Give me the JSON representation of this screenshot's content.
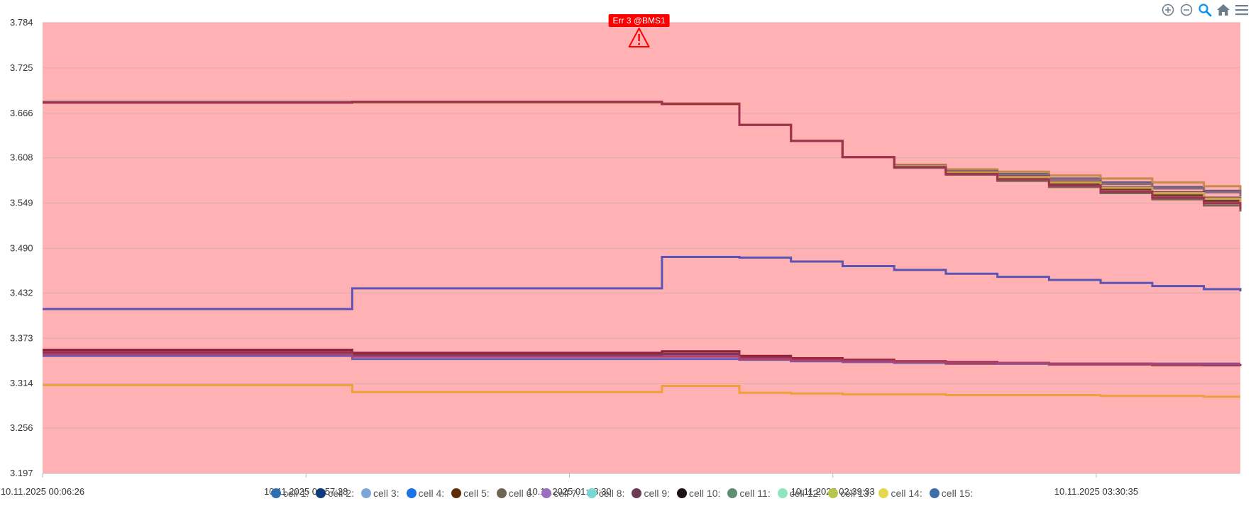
{
  "toolbar": {
    "icons": [
      "zoom-in-icon",
      "zoom-out-icon",
      "zoom-select-icon",
      "home-reset-icon",
      "menu-icon"
    ],
    "colors": {
      "grey": "#6e7d8c",
      "active": "#008ffb"
    }
  },
  "annotation": {
    "text": "Err 3 @BMS1",
    "icon": "warning-triangle-icon",
    "color": "#ff0000",
    "x": "10.11.2025 02:02:00"
  },
  "chart_data": {
    "type": "line",
    "style": "stepline",
    "background_color": "#ffb1b3",
    "grid": true,
    "legend_position": "bottom",
    "x_type": "datetime",
    "xlim": [
      "10.11.2025 00:06:26",
      "10.11.2025 03:58:30"
    ],
    "x_tick_labels": [
      "10.11.2025 00:06:26",
      "10.11.2025 00:57:28",
      "10.11.2025 01:48:30",
      "10.11.2025 02:39:33",
      "10.11.2025 03:30:35"
    ],
    "ylim": [
      3.197,
      3.784
    ],
    "y_tick_labels": [
      "3.784",
      "3.725",
      "3.666",
      "3.608",
      "3.549",
      "3.490",
      "3.432",
      "3.373",
      "3.314",
      "3.256",
      "3.197"
    ],
    "x_steps": [
      "10.11.2025 00:06:26",
      "10.11.2025 01:06:26",
      "10.11.2025 02:06:26",
      "10.11.2025 02:21:26",
      "10.11.2025 02:31:26",
      "10.11.2025 02:41:26",
      "10.11.2025 02:51:26",
      "10.11.2025 03:01:26",
      "10.11.2025 03:11:26",
      "10.11.2025 03:21:26",
      "10.11.2025 03:31:26",
      "10.11.2025 03:41:26",
      "10.11.2025 03:51:26",
      "10.11.2025 03:58:30"
    ],
    "series": [
      {
        "name": "cell 1:",
        "color": "#2e6fb0",
        "line_color": "#6d5a78",
        "values": [
          3.68,
          3.681,
          3.678,
          3.651,
          3.63,
          3.609,
          3.598,
          3.592,
          3.587,
          3.581,
          3.576,
          3.57,
          3.565,
          3.56
        ]
      },
      {
        "name": "cell 2:",
        "color": "#0d3b80",
        "line_color": "#c88a4a",
        "values": [
          3.681,
          3.68,
          3.679,
          3.651,
          3.63,
          3.609,
          3.599,
          3.593,
          3.59,
          3.585,
          3.581,
          3.576,
          3.571,
          3.566
        ]
      },
      {
        "name": "cell 3:",
        "color": "#7ea6d8",
        "line_color": "#8a6a80",
        "values": [
          3.681,
          3.681,
          3.678,
          3.651,
          3.63,
          3.609,
          3.598,
          3.591,
          3.586,
          3.58,
          3.574,
          3.568,
          3.563,
          3.558
        ]
      },
      {
        "name": "cell 4:",
        "color": "#1a73e8",
        "line_color": "#7a3b5a",
        "values": [
          3.68,
          3.681,
          3.678,
          3.651,
          3.63,
          3.609,
          3.597,
          3.59,
          3.584,
          3.577,
          3.57,
          3.563,
          3.556,
          3.549
        ]
      },
      {
        "name": "cell 5:",
        "color": "#5c2c06",
        "line_color": "#6b3b2c",
        "values": [
          3.68,
          3.681,
          3.678,
          3.651,
          3.63,
          3.609,
          3.596,
          3.588,
          3.581,
          3.574,
          3.567,
          3.559,
          3.552,
          3.545
        ]
      },
      {
        "name": "cell 6:",
        "color": "#6e6552",
        "line_color": "#7a6655",
        "values": [
          3.68,
          3.681,
          3.678,
          3.651,
          3.63,
          3.609,
          3.595,
          3.586,
          3.578,
          3.57,
          3.562,
          3.554,
          3.546,
          3.538
        ]
      },
      {
        "name": "cell 7:",
        "color": "#9b6fbf",
        "line_color": "#5b54b4",
        "values": [
          3.411,
          3.438,
          3.479,
          3.478,
          3.473,
          3.467,
          3.462,
          3.457,
          3.453,
          3.449,
          3.445,
          3.441,
          3.437,
          3.434
        ]
      },
      {
        "name": "cell 8:",
        "color": "#79d6d0",
        "line_color": "#8c1e3a",
        "values": [
          3.358,
          3.354,
          3.356,
          3.35,
          3.347,
          3.345,
          3.343,
          3.342,
          3.341,
          3.34,
          3.34,
          3.339,
          3.338,
          3.337
        ]
      },
      {
        "name": "cell 9:",
        "color": "#6b3a55",
        "line_color": "#a02c45",
        "values": [
          3.355,
          3.352,
          3.353,
          3.348,
          3.346,
          3.344,
          3.342,
          3.341,
          3.34,
          3.339,
          3.339,
          3.338,
          3.338,
          3.338
        ]
      },
      {
        "name": "cell 10:",
        "color": "#1c1414",
        "line_color": "#7c3a5e",
        "values": [
          3.353,
          3.351,
          3.352,
          3.346,
          3.344,
          3.343,
          3.341,
          3.34,
          3.34,
          3.339,
          3.339,
          3.339,
          3.338,
          3.338
        ]
      },
      {
        "name": "cell 11:",
        "color": "#5e8f72",
        "line_color": "#6a62ba",
        "values": [
          3.35,
          3.346,
          3.346,
          3.345,
          3.343,
          3.342,
          3.341,
          3.341,
          3.34,
          3.34,
          3.34,
          3.34,
          3.34,
          3.34
        ]
      },
      {
        "name": "cell 12:",
        "color": "#8fe6be",
        "line_color": "#b0406e",
        "values": [
          3.352,
          3.349,
          3.349,
          3.346,
          3.344,
          3.343,
          3.342,
          3.341,
          3.341,
          3.34,
          3.34,
          3.339,
          3.339,
          3.339
        ]
      },
      {
        "name": "cell 13:",
        "color": "#b5c64a",
        "line_color": "#f0a03a",
        "values": [
          3.312,
          3.303,
          3.311,
          3.302,
          3.301,
          3.3,
          3.3,
          3.299,
          3.299,
          3.299,
          3.298,
          3.298,
          3.297,
          3.297
        ]
      },
      {
        "name": "cell 14:",
        "color": "#e3d84e",
        "line_color": "#c9a548",
        "values": [
          3.68,
          3.681,
          3.678,
          3.651,
          3.63,
          3.609,
          3.597,
          3.589,
          3.583,
          3.576,
          3.569,
          3.562,
          3.555,
          3.547
        ]
      },
      {
        "name": "cell 15:",
        "color": "#3d6ea8",
        "line_color": "#a33050",
        "values": [
          3.68,
          3.681,
          3.678,
          3.651,
          3.63,
          3.609,
          3.596,
          3.587,
          3.58,
          3.572,
          3.564,
          3.556,
          3.549,
          3.541
        ]
      }
    ]
  }
}
